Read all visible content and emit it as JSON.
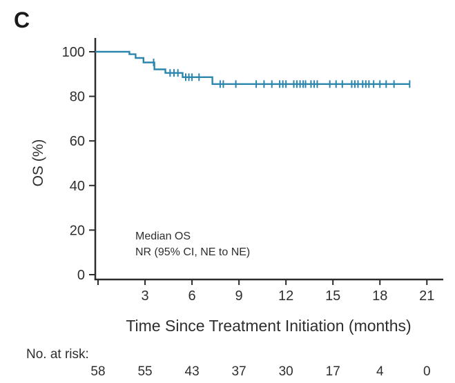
{
  "figure": {
    "panel_label": "C",
    "background": "#ffffff"
  },
  "chart_data": {
    "type": "line",
    "subtype": "kaplan-meier-step-curve",
    "title": "",
    "xlabel": "Time Since Treatment Initiation (months)",
    "ylabel": "OS (%)",
    "xlim": [
      0,
      22
    ],
    "ylim": [
      0,
      100
    ],
    "xticks": [
      3,
      6,
      9,
      12,
      15,
      18,
      21
    ],
    "yticks": [
      100,
      80,
      60,
      40,
      20,
      0
    ],
    "grid": false,
    "legend": "none",
    "series_color": "#2B86AD",
    "axis_color": "#2B2B2B",
    "text_color": "#2E2E2E",
    "annotation": {
      "line1": "Median OS",
      "line2": "NR (95% CI, NE to NE)"
    },
    "km_curve": {
      "description": "step function points [time_months, survival_percent_after_drop]",
      "points": [
        [
          0,
          100
        ],
        [
          2.0,
          98.9
        ],
        [
          2.4,
          97.2
        ],
        [
          2.9,
          95.2
        ],
        [
          3.6,
          92.1
        ],
        [
          4.3,
          90.5
        ],
        [
          5.4,
          88.6
        ],
        [
          7.3,
          85.5
        ]
      ],
      "end_time": 19.9,
      "plateau_percent": 85.5
    },
    "censor_marks": [
      [
        3.55,
        95.2
      ],
      [
        4.6,
        90.5
      ],
      [
        4.85,
        90.5
      ],
      [
        5.1,
        90.5
      ],
      [
        5.6,
        88.6
      ],
      [
        5.8,
        88.6
      ],
      [
        6.0,
        88.6
      ],
      [
        6.45,
        88.6
      ],
      [
        7.8,
        85.5
      ],
      [
        8.0,
        85.5
      ],
      [
        8.8,
        85.5
      ],
      [
        10.1,
        85.5
      ],
      [
        10.6,
        85.5
      ],
      [
        11.1,
        85.5
      ],
      [
        11.6,
        85.5
      ],
      [
        11.8,
        85.5
      ],
      [
        12.0,
        85.5
      ],
      [
        12.5,
        85.5
      ],
      [
        12.7,
        85.5
      ],
      [
        12.9,
        85.5
      ],
      [
        13.1,
        85.5
      ],
      [
        13.25,
        85.5
      ],
      [
        13.6,
        85.5
      ],
      [
        13.8,
        85.5
      ],
      [
        14.0,
        85.5
      ],
      [
        14.8,
        85.5
      ],
      [
        15.2,
        85.5
      ],
      [
        15.6,
        85.5
      ],
      [
        16.2,
        85.5
      ],
      [
        16.4,
        85.5
      ],
      [
        16.6,
        85.5
      ],
      [
        16.9,
        85.5
      ],
      [
        17.1,
        85.5
      ],
      [
        17.3,
        85.5
      ],
      [
        17.6,
        85.5
      ],
      [
        18.0,
        85.5
      ],
      [
        18.4,
        85.5
      ],
      [
        18.9,
        85.5
      ],
      [
        19.9,
        85.5
      ]
    ],
    "at_risk": {
      "label": "No. at risk:",
      "times": [
        0,
        3,
        6,
        9,
        12,
        15,
        18,
        21
      ],
      "counts": [
        58,
        55,
        43,
        37,
        30,
        17,
        4,
        0
      ]
    }
  }
}
